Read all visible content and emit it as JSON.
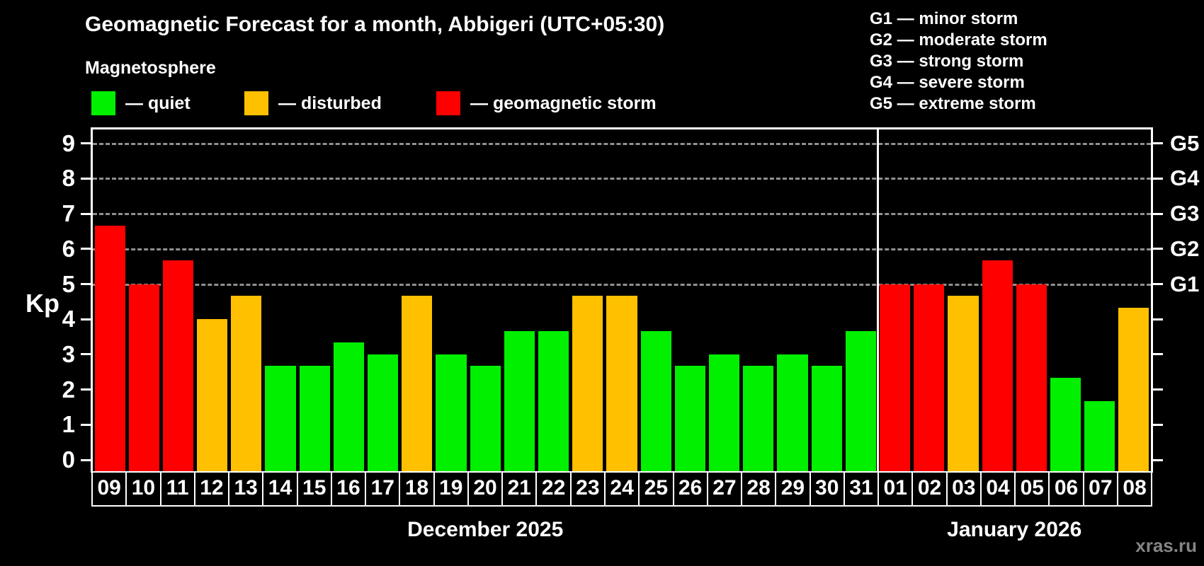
{
  "header": {
    "title": "Geomagnetic Forecast for a month, Abbigeri (UTC+05:30)",
    "subtitle": "Magnetosphere",
    "legend": [
      {
        "key": "quiet",
        "label": "— quiet",
        "color": "#00f000"
      },
      {
        "key": "disturbed",
        "label": "— disturbed",
        "color": "#ffc000"
      },
      {
        "key": "storm",
        "label": "— geomagnetic storm",
        "color": "#ff0000"
      }
    ],
    "g_scale_legend": [
      "G1 — minor storm",
      "G2 — moderate storm",
      "G3 — strong storm",
      "G4 — severe storm",
      "G5 — extreme storm"
    ]
  },
  "chart_data": {
    "type": "bar",
    "ylabel": "Kp",
    "ylim": [
      0,
      9
    ],
    "yticks": [
      0,
      1,
      2,
      3,
      4,
      5,
      6,
      7,
      8,
      9
    ],
    "gridlines_at": [
      5,
      6,
      7,
      8,
      9
    ],
    "grid_style": "dashed",
    "right_axis_labels": [
      {
        "kp": 5,
        "label": "G1"
      },
      {
        "kp": 6,
        "label": "G2"
      },
      {
        "kp": 7,
        "label": "G3"
      },
      {
        "kp": 8,
        "label": "G4"
      },
      {
        "kp": 9,
        "label": "G5"
      }
    ],
    "level_colors": {
      "quiet": "#00f000",
      "disturbed": "#ffc000",
      "storm": "#ff0000"
    },
    "months": [
      {
        "label": "December 2025",
        "days": 23
      },
      {
        "label": "January 2026",
        "days": 8
      }
    ],
    "bars": [
      {
        "day": "09",
        "kp": 6.67,
        "level": "storm"
      },
      {
        "day": "10",
        "kp": 5.0,
        "level": "storm"
      },
      {
        "day": "11",
        "kp": 5.67,
        "level": "storm"
      },
      {
        "day": "12",
        "kp": 4.0,
        "level": "disturbed"
      },
      {
        "day": "13",
        "kp": 4.67,
        "level": "disturbed"
      },
      {
        "day": "14",
        "kp": 2.67,
        "level": "quiet"
      },
      {
        "day": "15",
        "kp": 2.67,
        "level": "quiet"
      },
      {
        "day": "16",
        "kp": 3.33,
        "level": "quiet"
      },
      {
        "day": "17",
        "kp": 3.0,
        "level": "quiet"
      },
      {
        "day": "18",
        "kp": 4.67,
        "level": "disturbed"
      },
      {
        "day": "19",
        "kp": 3.0,
        "level": "quiet"
      },
      {
        "day": "20",
        "kp": 2.67,
        "level": "quiet"
      },
      {
        "day": "21",
        "kp": 3.67,
        "level": "quiet"
      },
      {
        "day": "22",
        "kp": 3.67,
        "level": "quiet"
      },
      {
        "day": "23",
        "kp": 4.67,
        "level": "disturbed"
      },
      {
        "day": "24",
        "kp": 4.67,
        "level": "disturbed"
      },
      {
        "day": "25",
        "kp": 3.67,
        "level": "quiet"
      },
      {
        "day": "26",
        "kp": 2.67,
        "level": "quiet"
      },
      {
        "day": "27",
        "kp": 3.0,
        "level": "quiet"
      },
      {
        "day": "28",
        "kp": 2.67,
        "level": "quiet"
      },
      {
        "day": "29",
        "kp": 3.0,
        "level": "quiet"
      },
      {
        "day": "30",
        "kp": 2.67,
        "level": "quiet"
      },
      {
        "day": "31",
        "kp": 3.67,
        "level": "quiet"
      },
      {
        "day": "01",
        "kp": 5.0,
        "level": "storm"
      },
      {
        "day": "02",
        "kp": 5.0,
        "level": "storm"
      },
      {
        "day": "03",
        "kp": 4.67,
        "level": "disturbed"
      },
      {
        "day": "04",
        "kp": 5.67,
        "level": "storm"
      },
      {
        "day": "05",
        "kp": 5.0,
        "level": "storm"
      },
      {
        "day": "06",
        "kp": 2.33,
        "level": "quiet"
      },
      {
        "day": "07",
        "kp": 1.67,
        "level": "quiet"
      },
      {
        "day": "08",
        "kp": 4.33,
        "level": "disturbed"
      }
    ]
  },
  "watermark": "xras.ru"
}
